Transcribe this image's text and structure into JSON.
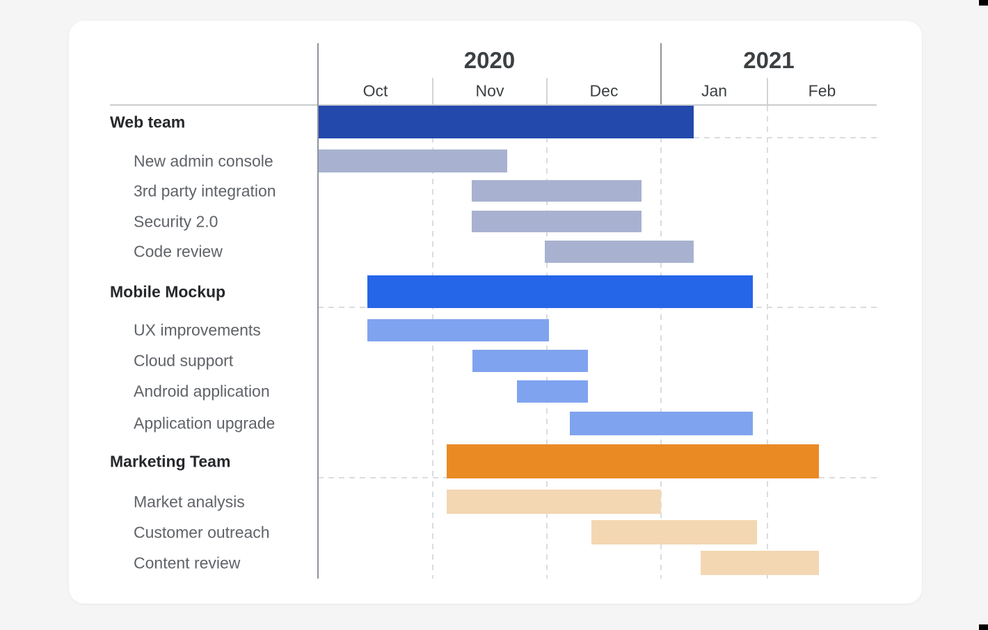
{
  "page": {
    "background_color": "#f5f5f6",
    "card_color": "#ffffff",
    "corner_marks": [
      {
        "position": "top-right"
      },
      {
        "position": "bottom-right"
      }
    ]
  },
  "chart_data": {
    "type": "gantt",
    "title": "",
    "layout_hints": {
      "grid": "dashed vertical month lines and dashed horizontal group separators",
      "unit_note": "start/end measured in months from Oct 1 2020 (0 = Oct 1, 5 = end of Feb 2021)"
    },
    "timeline": {
      "years": [
        {
          "label": "2020",
          "months": [
            "Oct",
            "Nov",
            "Dec"
          ]
        },
        {
          "label": "2021",
          "months": [
            "Jan",
            "Feb"
          ]
        }
      ]
    },
    "colors": {
      "axis_line": "#8f949b",
      "gridline": "#dadce0",
      "year_text": "#3c4043",
      "month_text": "#3c4043",
      "group_text": "#26282b",
      "task_text": "#5f6368"
    },
    "groups": [
      {
        "label": "Web team",
        "bar_color": "#2349ac",
        "task_color": "#a8b2d0",
        "start": 0,
        "end": 3.31,
        "tasks": [
          {
            "label": "New admin console",
            "start": 0,
            "end": 1.65
          },
          {
            "label": "3rd party integration",
            "start": 1.34,
            "end": 2.83
          },
          {
            "label": "Security 2.0",
            "start": 1.34,
            "end": 2.83
          },
          {
            "label": "Code review",
            "start": 1.98,
            "end": 3.31
          }
        ]
      },
      {
        "label": "Mobile Mockup",
        "bar_color": "#2566e9",
        "task_color": "#7fa3ef",
        "start": 0.43,
        "end": 3.86,
        "tasks": [
          {
            "label": "UX improvements",
            "start": 0.43,
            "end": 2.02
          },
          {
            "label": "Cloud support",
            "start": 1.35,
            "end": 2.36
          },
          {
            "label": "Android application",
            "start": 1.74,
            "end": 2.36
          },
          {
            "label": "Application upgrade",
            "start": 2.2,
            "end": 3.86
          }
        ]
      },
      {
        "label": "Marketing Team",
        "bar_color": "#ea8a23",
        "task_color": "#f3d7b3",
        "start": 1.12,
        "end": 4.47,
        "tasks": [
          {
            "label": "Market analysis",
            "start": 1.12,
            "end": 3.0
          },
          {
            "label": "Customer outreach",
            "start": 2.39,
            "end": 3.9
          },
          {
            "label": "Content review",
            "start": 3.37,
            "end": 4.47
          }
        ]
      }
    ]
  }
}
